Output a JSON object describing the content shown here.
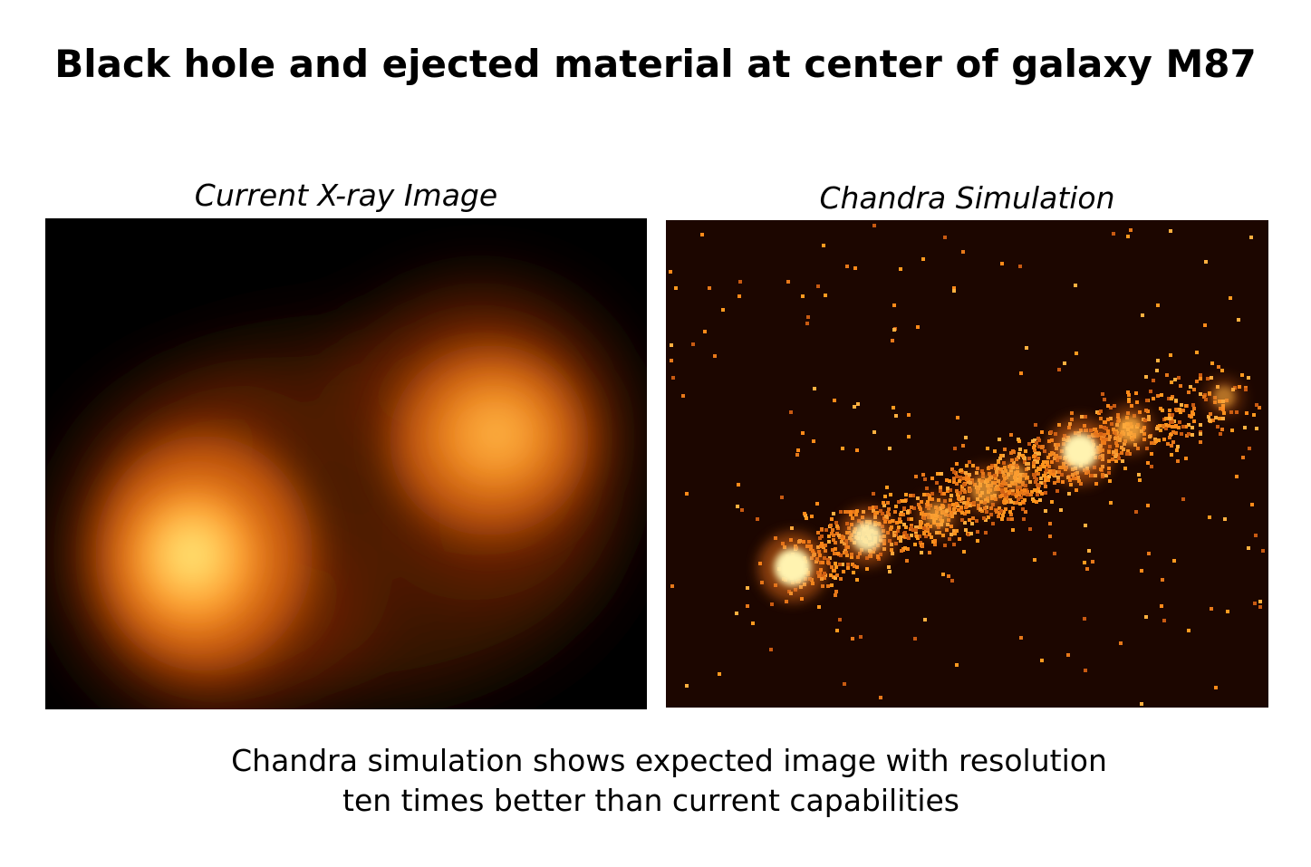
{
  "title": "Black hole and ejected material at center of galaxy M87",
  "panels": {
    "left": {
      "label": "Current X-ray Image"
    },
    "right": {
      "label": "Chandra Simulation"
    }
  },
  "caption": {
    "line1": "Chandra simulation shows expected image with resolution",
    "line2": "ten times better than current capabilities"
  },
  "colors": {
    "background": "#ffffff",
    "text": "#000000",
    "panel_left_bg": "#000000",
    "panel_right_bg": "#1c0600",
    "glow_core": "#fff7b0",
    "glow_mid": "#ff9a20",
    "glow_outer": "#7a2a05"
  }
}
